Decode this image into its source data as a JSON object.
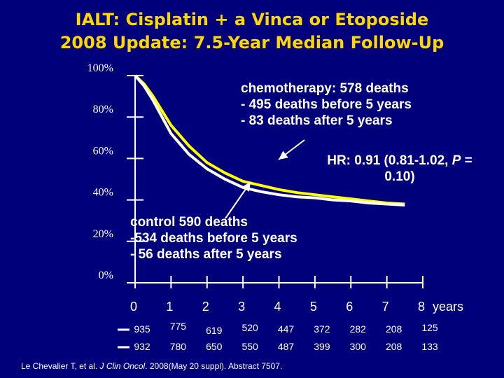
{
  "title_line1": "IALT: Cisplatin + a Vinca or Etoposide",
  "title_line2": "2008 Update: 7.5-Year Median Follow-Up",
  "colors": {
    "background": "#00007a",
    "title": "#ffd700",
    "chemo_line": "#ffff00",
    "control_line": "#ffffff"
  },
  "chart_data": {
    "type": "line",
    "title": "IALT: Cisplatin + a Vinca or Etoposide 2008 Update: 7.5-Year Median Follow-Up",
    "xlabel": "years",
    "ylabel": "",
    "xlim": [
      0,
      8
    ],
    "ylim": [
      0,
      100
    ],
    "y_ticks": [
      "0%",
      "20%",
      "40%",
      "60%",
      "80%",
      "100%"
    ],
    "x_ticks": [
      "0",
      "1",
      "2",
      "3",
      "4",
      "5",
      "6",
      "7",
      "8"
    ],
    "x_unit": "years",
    "series": [
      {
        "name": "chemotherapy",
        "color": "#ffff00",
        "x": [
          0,
          0.25,
          0.5,
          0.75,
          1,
          1.5,
          2,
          2.5,
          3,
          3.5,
          4,
          4.5,
          5,
          5.5,
          6,
          6.5,
          7,
          7.5
        ],
        "y": [
          100,
          96,
          90,
          83,
          76,
          66,
          58,
          53,
          49,
          47,
          45,
          43.5,
          42.5,
          41.5,
          40.5,
          39.5,
          38.5,
          38
        ]
      },
      {
        "name": "control",
        "color": "#ffffff",
        "x": [
          0,
          0.25,
          0.5,
          0.75,
          1,
          1.5,
          2,
          2.5,
          3,
          3.5,
          4,
          4.5,
          5,
          5.5,
          6,
          6.5,
          7,
          7.5
        ],
        "y": [
          100,
          95,
          88,
          80,
          72,
          62,
          55,
          50,
          46,
          44,
          42.5,
          41.5,
          41,
          40,
          39.5,
          38.5,
          38,
          37.5
        ]
      }
    ],
    "annotations": {
      "chemo": [
        "chemotherapy: 578 deaths",
        "- 495 deaths before 5 years",
        "- 83 deaths after 5 years"
      ],
      "hr": [
        "HR: 0.91 (0.81-1.02, ",
        "P",
        " = ",
        "0.10)"
      ],
      "control": [
        "control 590 deaths",
        "-534 deaths before 5 years",
        "- 56 deaths after 5 years"
      ]
    },
    "number_at_risk": {
      "chemotherapy": [
        "935",
        "775",
        "619",
        "520",
        "447",
        "372",
        "282",
        "208",
        "125"
      ],
      "control": [
        "932",
        "780",
        "650",
        "550",
        "487",
        "399",
        "300",
        "208",
        "133"
      ]
    }
  },
  "citation": {
    "pre": "Le Chevalier T, et al. ",
    "journal": "J Clin Oncol",
    "post": ". 2008(May 20 suppl). Abstract 7507."
  }
}
